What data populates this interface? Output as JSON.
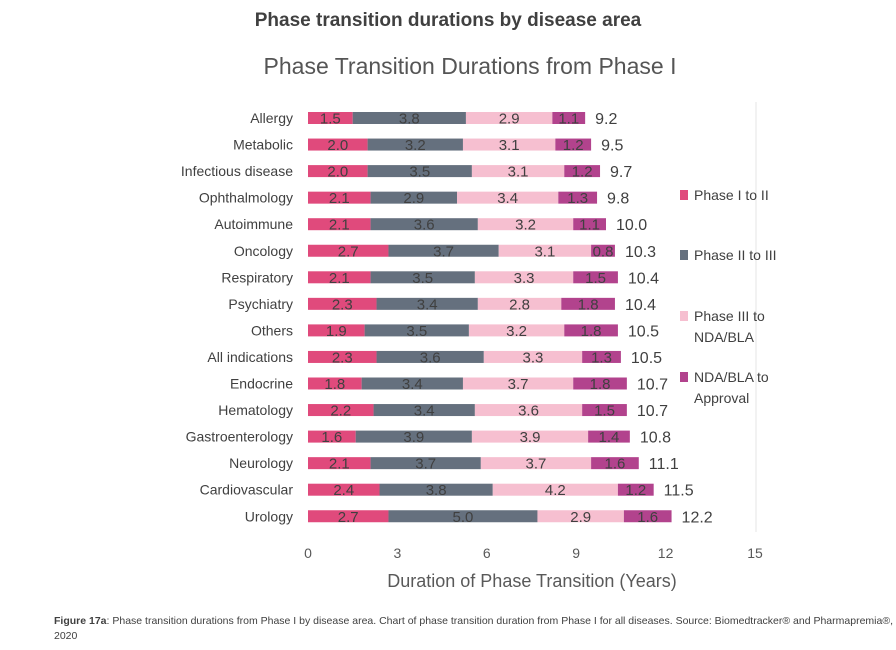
{
  "heading": "Phase transition durations by disease area",
  "caption": {
    "label": "Figure 17a",
    "text": ": Phase transition durations from Phase I by disease area. Chart of phase transition duration from Phase I for all diseases. Source: Biomedtracker® and Pharmapremia®, 2020"
  },
  "chart_data": {
    "type": "bar",
    "orientation": "horizontal",
    "stacked": true,
    "title": "Phase Transition Durations from Phase I",
    "xlabel": "Duration of Phase Transition (Years)",
    "ylabel": "",
    "xlim": [
      0,
      15
    ],
    "xticks": [
      0,
      3,
      6,
      9,
      12,
      15
    ],
    "grid": false,
    "legend_position": "right",
    "categories": [
      "Allergy",
      "Metabolic",
      "Infectious disease",
      "Ophthalmology",
      "Autoimmune",
      "Oncology",
      "Respiratory",
      "Psychiatry",
      "Others",
      "All indications",
      "Endocrine",
      "Hematology",
      "Gastroenterology",
      "Neurology",
      "Cardiovascular",
      "Urology"
    ],
    "series": [
      {
        "name": "Phase I to II",
        "color": "#e04a7c",
        "values": [
          1.5,
          2.0,
          2.0,
          2.1,
          2.1,
          2.7,
          2.1,
          2.3,
          1.9,
          2.3,
          1.8,
          2.2,
          1.6,
          2.1,
          2.4,
          2.7
        ]
      },
      {
        "name": "Phase II to III",
        "color": "#65707e",
        "values": [
          3.8,
          3.2,
          3.5,
          2.9,
          3.6,
          3.7,
          3.5,
          3.4,
          3.5,
          3.6,
          3.4,
          3.4,
          3.9,
          3.7,
          3.8,
          5.0
        ]
      },
      {
        "name": "Phase III to NDA/BLA",
        "color": "#f6bfd0",
        "values": [
          2.9,
          3.1,
          3.1,
          3.4,
          3.2,
          3.1,
          3.3,
          2.8,
          3.2,
          3.3,
          3.7,
          3.6,
          3.9,
          3.7,
          4.2,
          2.9
        ]
      },
      {
        "name": "NDA/BLA to Approval",
        "color": "#b2438d",
        "values": [
          1.1,
          1.2,
          1.2,
          1.3,
          1.1,
          0.8,
          1.5,
          1.8,
          1.8,
          1.3,
          1.8,
          1.5,
          1.4,
          1.6,
          1.2,
          1.6
        ]
      }
    ],
    "totals": [
      9.2,
      9.5,
      9.7,
      9.8,
      10.0,
      10.3,
      10.4,
      10.4,
      10.5,
      10.5,
      10.7,
      10.7,
      10.8,
      11.1,
      11.5,
      12.2
    ],
    "legend_labels": [
      [
        "Phase I to II"
      ],
      [
        "Phase II to III"
      ],
      [
        "Phase III to",
        "NDA/BLA"
      ],
      [
        "NDA/BLA to",
        "Approval"
      ]
    ]
  }
}
